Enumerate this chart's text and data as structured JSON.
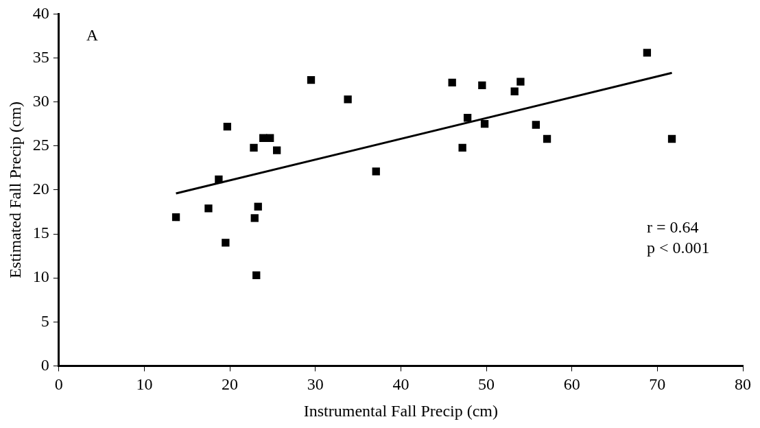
{
  "chart_data": {
    "type": "scatter",
    "xlabel": "Instrumental Fall Precip (cm)",
    "ylabel": "Estimated Fall Precip (cm)",
    "xlim": [
      0,
      80
    ],
    "xticks": [
      0,
      10,
      20,
      30,
      40,
      50,
      60,
      70,
      80
    ],
    "ylim": [
      0,
      40
    ],
    "yticks": [
      0,
      5,
      10,
      15,
      20,
      25,
      30,
      35,
      40
    ],
    "grid": false,
    "legend": false,
    "marker": "square",
    "annotations": [
      "A",
      "r = 0.64",
      "p < 0.001"
    ],
    "series": [
      {
        "type": "scatter",
        "color": "#000000",
        "x": [
          13.7,
          17.5,
          18.7,
          19.7,
          19.5,
          22.8,
          22.9,
          23.3,
          23.1,
          23.9,
          24.7,
          25.5,
          29.5,
          33.8,
          37.1,
          46.0,
          47.2,
          47.8,
          49.5,
          49.8,
          53.3,
          54.0,
          55.8,
          57.1,
          68.8,
          71.7
        ],
        "values": [
          16.9,
          17.9,
          21.2,
          27.2,
          14.0,
          24.8,
          16.8,
          18.1,
          10.3,
          25.9,
          25.9,
          24.5,
          32.5,
          30.3,
          22.1,
          32.2,
          24.8,
          28.2,
          31.9,
          27.5,
          31.2,
          32.3,
          27.4,
          25.8,
          35.6,
          25.8
        ]
      },
      {
        "type": "line",
        "color": "#000000",
        "marker": "none",
        "line_style": "solid",
        "x": [
          13.7,
          71.7
        ],
        "values": [
          19.6,
          33.3
        ]
      }
    ]
  }
}
